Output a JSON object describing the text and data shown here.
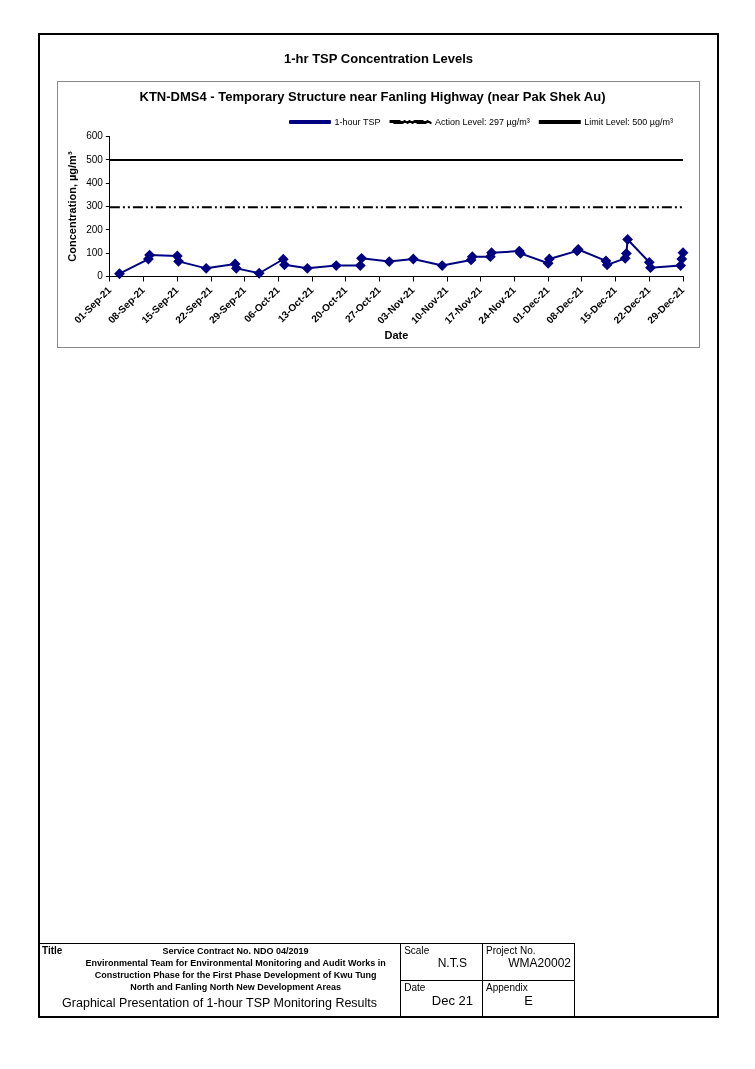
{
  "chart_data": {
    "type": "line",
    "title": "1-hr TSP Concentration Levels",
    "subtitle": "KTN-DMS4 - Temporary Structure near Fanling Highway (near Pak Shek Au)",
    "xlabel": "Date",
    "ylabel": "Concentration, µg/m³",
    "x": [
      "--09-03",
      "--09-09T00:00",
      "--09-09T06:00",
      "--09-15T00:00",
      "--09-15T06:00",
      "--09-21",
      "--09-27T00:00",
      "--09-27T06:00",
      "--10-02",
      "--10-07T00:00",
      "--10-07T06:00",
      "--10-12",
      "--10-18",
      "--10-23T00:00",
      "--10-23T06:00",
      "--10-29",
      "--11-03",
      "--11-09",
      "--11-15T00:00",
      "--11-15T06:00",
      "--11-19T00:00",
      "--11-19T06:00",
      "--11-25T00:00",
      "--11-25T06:00",
      "--12-01T00:00",
      "--12-01T06:00",
      "--12-07T00:00",
      "--12-07T06:00",
      "--12-13T00:00",
      "--12-13T06:00",
      "--12-17T00:00",
      "--12-17T06:00",
      "--12-17T12:00",
      "--12-22T00:00",
      "--12-22T06:00",
      "--12-28T12:00",
      "--12-28T18:00",
      "--12-29"
    ],
    "series": [
      {
        "name": "1-hour TSP",
        "color": "#000080",
        "values": [
          12,
          75,
          92,
          88,
          65,
          35,
          54,
          35,
          14,
          74,
          50,
          35,
          47,
          47,
          78,
          64,
          75,
          47,
          71,
          85,
          85,
          102,
          109,
          99,
          57,
          75,
          110,
          116,
          67,
          50,
          78,
          99,
          159,
          61,
          38,
          47,
          75,
          102
        ]
      }
    ],
    "ref_lines": [
      {
        "axis": "y",
        "value": 297,
        "label": "Action Level: 297 µg/m³",
        "color": "#000000",
        "line_style": "dashed"
      },
      {
        "axis": "y",
        "value": 500,
        "label": "Limit Level: 500 µg/m³",
        "color": "#000000",
        "line_style": "solid"
      }
    ],
    "xlim": [
      "--09-01",
      "--12-29"
    ],
    "xticks": [
      {
        "value": "--09-01",
        "label": "01-Sep-21"
      },
      {
        "value": "--09-08",
        "label": "08-Sep-21"
      },
      {
        "value": "--09-15",
        "label": "15-Sep-21"
      },
      {
        "value": "--09-22",
        "label": "22-Sep-21"
      },
      {
        "value": "--09-29",
        "label": "29-Sep-21"
      },
      {
        "value": "--10-06",
        "label": "06-Oct-21"
      },
      {
        "value": "--10-13",
        "label": "13-Oct-21"
      },
      {
        "value": "--10-20",
        "label": "20-Oct-21"
      },
      {
        "value": "--10-27",
        "label": "27-Oct-21"
      },
      {
        "value": "--11-03",
        "label": "03-Nov-21"
      },
      {
        "value": "--11-10",
        "label": "10-Nov-21"
      },
      {
        "value": "--11-17",
        "label": "17-Nov-21"
      },
      {
        "value": "--11-24",
        "label": "24-Nov-21"
      },
      {
        "value": "--12-01",
        "label": "01-Dec-21"
      },
      {
        "value": "--12-08",
        "label": "08-Dec-21"
      },
      {
        "value": "--12-15",
        "label": "15-Dec-21"
      },
      {
        "value": "--12-22",
        "label": "22-Dec-21"
      },
      {
        "value": "--12-29",
        "label": "29-Dec-21"
      }
    ],
    "ylim": [
      0,
      600
    ],
    "yticks": [
      0,
      100,
      200,
      300,
      400,
      500,
      600
    ],
    "grid": false,
    "legend": "top right",
    "marker": "diamond",
    "line_style": "solid",
    "annotations": [
      "Title",
      "Service Contract No. NDO 04/2019",
      "Environmental Team for Environmental Monitoring and Audit Works in Construction Phase for the First Phase Development of Kwu Tung North and Fanling North New Development Areas",
      "Graphical Presentation of 1-hour TSP Monitoring Results",
      "Scale",
      "N.T.S",
      "Project No.",
      "WMA20002",
      "Date",
      "Dec 21",
      "Appendix",
      "E"
    ]
  }
}
